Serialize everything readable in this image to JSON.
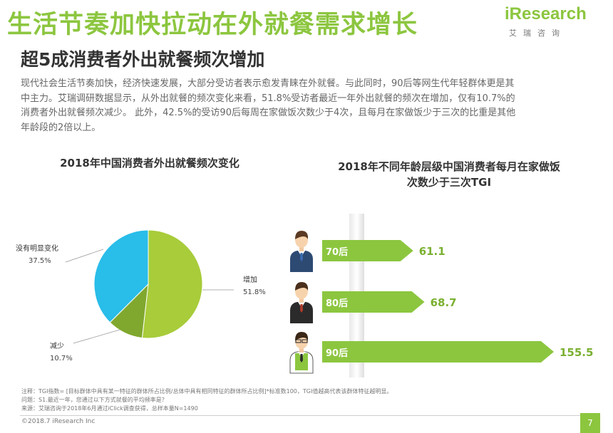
{
  "header": {
    "title": "生活节奏加快拉动在外就餐需求增长",
    "subtitle": "超5成消费者外出就餐频次增加",
    "logo_text": "iResearch",
    "logo_sub": "艾瑞咨询"
  },
  "intro_lines": [
    "现代社会生活节奏加快，经济快速发展，大部分受访者表示愈发青睐在外就餐。与此同时，90后等网生代年轻群体更是其",
    "中主力。艾瑞调研数据显示，从外出就餐的频次变化来看，51.8%受访者最近一年外出就餐的频次在增加，仅有10.7%的",
    "消费者外出就餐频次减少。 此外，42.5%的受访90后每周在家做饭次数少于4次，且每月在家做饭少于三次的比重是其他",
    "年龄段的2倍以上。"
  ],
  "colors": {
    "brand_green": "#8cc63f",
    "pie_green": "#a8cc3a",
    "pie_blue": "#29bde9",
    "pie_dark": "#80a82e",
    "tgi_arrow": "#8cc63f",
    "tgi_value": "#7ab030",
    "page_box": "#8cc63f"
  },
  "chart_data": [
    {
      "type": "pie",
      "title": "2018年中国消费者外出就餐频次变化",
      "slices": [
        {
          "label": "增加",
          "value": 51.8,
          "display": "51.8%",
          "color": "#a8cc3a"
        },
        {
          "label": "减少",
          "value": 10.7,
          "display": "10.7%",
          "color": "#80a82e"
        },
        {
          "label": "没有明显变化",
          "value": 37.5,
          "display": "37.5%",
          "color": "#29bde9"
        }
      ]
    },
    {
      "type": "bar",
      "orientation": "horizontal",
      "title_lines": [
        "2018年不同年龄层级中国消费者每月在家做饭",
        "次数少于三次TGI"
      ],
      "categories": [
        "70后",
        "80后",
        "90后"
      ],
      "values": [
        61.1,
        68.7,
        155.5
      ],
      "value_labels": [
        "61.1",
        "68.7",
        "155.5"
      ],
      "icons": [
        "man-70s-icon",
        "man-80s-icon",
        "man-90s-icon"
      ]
    }
  ],
  "notes": [
    "注释：TGI指数= [目标群体中具有某一特征的群体所占比例/总体中具有相同特征的群体所占比例]*标准数100，TGI值越高代表该群体特征越明显。",
    "问题：S1.最近一年，您通过以下方式就餐的平均频率是？",
    "来源：艾瑞咨询于2018年6月通过iClick调查获得，总样本量N=1490"
  ],
  "footer": {
    "copyright": "©2018.7 iResearch Inc",
    "page": "7"
  }
}
